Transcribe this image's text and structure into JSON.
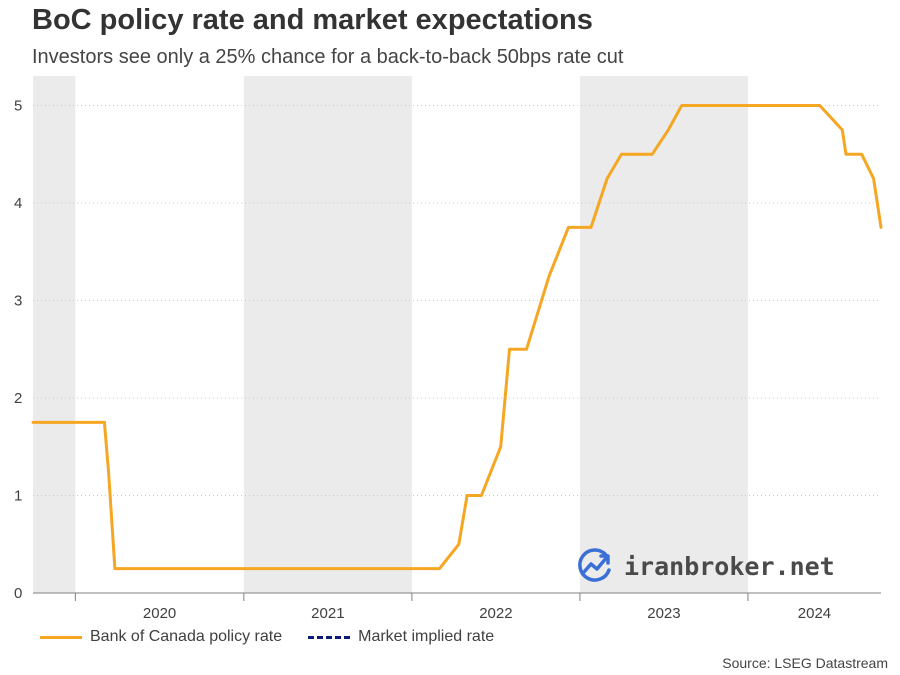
{
  "header": {
    "title": "BoC policy rate and market expectations",
    "subtitle": "Investors see only a 25% chance for a back-to-back 50bps rate cut"
  },
  "source": "Source: LSEG Datastream",
  "watermark": {
    "text": "iranbroker.net",
    "icon": "chart-trend-icon",
    "accent": "#3b6fd8"
  },
  "legend": [
    {
      "label": "Bank of Canada policy rate",
      "color": "#f5a623",
      "style": "solid"
    },
    {
      "label": "Market implied rate",
      "color": "#0c1a7a",
      "style": "dashed"
    }
  ],
  "chart_data": {
    "type": "line",
    "title": "BoC policy rate and market expectations",
    "subtitle": "Investors see only a 25% chance for a back-to-back 50bps rate cut",
    "xlabel": "",
    "ylabel": "",
    "x_domain": [
      "2019-10",
      "2024-10"
    ],
    "xlim": [
      "2019-10-01",
      "2024-10-16"
    ],
    "ylim": [
      0,
      5.2
    ],
    "y_ticks": [
      0,
      1,
      2,
      3,
      4,
      5
    ],
    "year_labels": [
      "2020",
      "2021",
      "2022",
      "2023",
      "2024"
    ],
    "shaded_years": [
      "2019",
      "2021",
      "2023"
    ],
    "grid": "horizontal-dotted",
    "legend_position": "bottom-left",
    "series": [
      {
        "name": "Bank of Canada policy rate",
        "color": "#f5a623",
        "points": [
          [
            "2019-10-01",
            1.75
          ],
          [
            "2020-03-04",
            1.75
          ],
          [
            "2020-03-13",
            1.25
          ],
          [
            "2020-03-27",
            0.25
          ],
          [
            "2022-03-02",
            0.25
          ],
          [
            "2022-04-13",
            0.5
          ],
          [
            "2022-05-01",
            1.0
          ],
          [
            "2022-06-01",
            1.0
          ],
          [
            "2022-07-13",
            1.5
          ],
          [
            "2022-08-01",
            2.5
          ],
          [
            "2022-09-07",
            2.5
          ],
          [
            "2022-10-26",
            3.25
          ],
          [
            "2022-12-07",
            3.75
          ],
          [
            "2023-01-25",
            3.75
          ],
          [
            "2023-03-01",
            4.25
          ],
          [
            "2023-04-01",
            4.5
          ],
          [
            "2023-06-07",
            4.5
          ],
          [
            "2023-07-12",
            4.75
          ],
          [
            "2023-08-10",
            5.0
          ],
          [
            "2024-06-05",
            5.0
          ],
          [
            "2024-07-24",
            4.75
          ],
          [
            "2024-08-01",
            4.5
          ],
          [
            "2024-09-04",
            4.5
          ],
          [
            "2024-09-30",
            4.25
          ],
          [
            "2024-10-16",
            3.75
          ]
        ]
      },
      {
        "name": "Market implied rate",
        "color": "#0c1a7a",
        "points": []
      }
    ]
  }
}
